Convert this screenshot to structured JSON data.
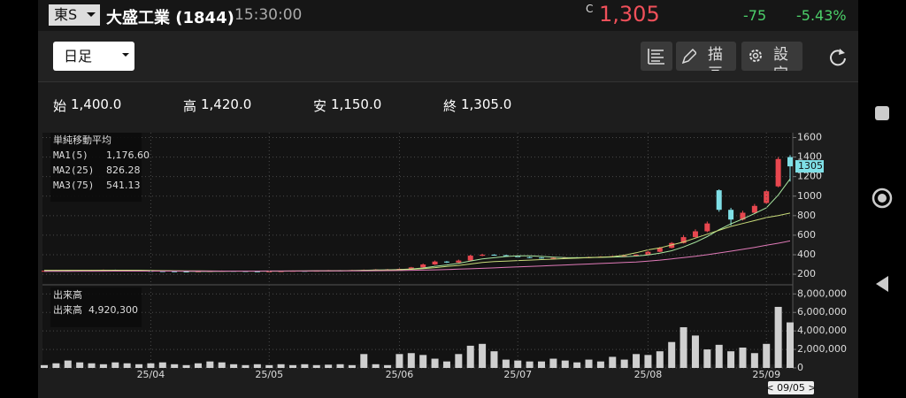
{
  "header": {
    "exchange": "東S",
    "name": "大盛工業 (1844)",
    "time": "15:30:00",
    "price_flag": "C",
    "price": "1,305",
    "change": "-75",
    "change_pct": "-5.43%"
  },
  "toolbar": {
    "period": "日足",
    "draw": "描画",
    "settings": "設定"
  },
  "ohlc": [
    {
      "label": "始",
      "value": "1,400.0"
    },
    {
      "label": "高",
      "value": "1,420.0"
    },
    {
      "label": "安",
      "value": "1,150.0"
    },
    {
      "label": "終",
      "value": "1,305.0"
    }
  ],
  "chart_data": [
    {
      "type": "candlestick",
      "title": "単純移動平均",
      "up_color": "#e8474f",
      "down_color": "#7fdfe6",
      "open": [
        232,
        235,
        240,
        238,
        236,
        240,
        245,
        242,
        238,
        235,
        232,
        230,
        228,
        226,
        230,
        232,
        235,
        233,
        230,
        228,
        230,
        232,
        235,
        233,
        236,
        240,
        238,
        242,
        245,
        248,
        250,
        255,
        270,
        300,
        330,
        320,
        340,
        390,
        400,
        395,
        385,
        375,
        370,
        365,
        368,
        372,
        370,
        375,
        380,
        385,
        390,
        400,
        430,
        470,
        520,
        580,
        640,
        1060,
        860,
        760,
        830,
        930,
        1100,
        1400
      ],
      "high": [
        238,
        243,
        242,
        240,
        243,
        248,
        247,
        244,
        240,
        237,
        234,
        232,
        230,
        232,
        235,
        238,
        237,
        234,
        232,
        232,
        235,
        238,
        237,
        238,
        243,
        242,
        245,
        248,
        252,
        254,
        260,
        275,
        310,
        340,
        335,
        350,
        400,
        410,
        405,
        398,
        390,
        380,
        375,
        372,
        376,
        376,
        380,
        385,
        390,
        395,
        405,
        440,
        480,
        530,
        600,
        660,
        740,
        1070,
        880,
        850,
        920,
        1060,
        1400,
        1420
      ],
      "low": [
        229,
        232,
        235,
        234,
        233,
        237,
        240,
        236,
        233,
        229,
        227,
        225,
        223,
        224,
        228,
        230,
        231,
        228,
        225,
        225,
        227,
        229,
        230,
        230,
        233,
        235,
        236,
        240,
        242,
        245,
        246,
        250,
        265,
        295,
        315,
        315,
        335,
        385,
        390,
        380,
        370,
        365,
        360,
        360,
        364,
        366,
        366,
        370,
        376,
        380,
        385,
        395,
        425,
        465,
        515,
        575,
        630,
        840,
        700,
        750,
        820,
        920,
        1090,
        1150
      ],
      "close": [
        235,
        240,
        238,
        236,
        240,
        245,
        242,
        238,
        235,
        232,
        230,
        228,
        226,
        230,
        232,
        235,
        233,
        230,
        228,
        230,
        232,
        235,
        233,
        236,
        240,
        238,
        242,
        245,
        248,
        250,
        255,
        270,
        300,
        330,
        320,
        340,
        390,
        400,
        395,
        385,
        375,
        370,
        365,
        368,
        372,
        370,
        375,
        380,
        385,
        390,
        400,
        430,
        470,
        520,
        580,
        640,
        720,
        860,
        760,
        830,
        900,
        1050,
        1380,
        1305
      ],
      "series": [
        {
          "name": "MA1(5)",
          "color": "#a8e6a0",
          "values": [
            236,
            237,
            238,
            238,
            238,
            240,
            240,
            240,
            240,
            238,
            235,
            232,
            230,
            229,
            229,
            230,
            231,
            231,
            231,
            231,
            231,
            232,
            233,
            234,
            235,
            236,
            238,
            240,
            243,
            245,
            248,
            254,
            264,
            281,
            295,
            312,
            336,
            356,
            369,
            382,
            389,
            389,
            383,
            375,
            370,
            369,
            370,
            373,
            376,
            380,
            386,
            397,
            415,
            441,
            480,
            528,
            586,
            656,
            716,
            766,
            822,
            880,
            1010,
            1176.6
          ],
          "value_labels": [
            null,
            null,
            null,
            null,
            null,
            null,
            null,
            null,
            null,
            null,
            null,
            null,
            null,
            null,
            null,
            null,
            null,
            null,
            null,
            null,
            null,
            null,
            null,
            null,
            null,
            null,
            null,
            null,
            null,
            null,
            null,
            null,
            null,
            null,
            null,
            null,
            null,
            null,
            null,
            null,
            null,
            null,
            null,
            null,
            null,
            null,
            null,
            null,
            null,
            null,
            null,
            null,
            null,
            null,
            null,
            null,
            null,
            null,
            null,
            null,
            null,
            null,
            null,
            "1,176.60"
          ]
        },
        {
          "name": "MA2(25)",
          "color": "#c9dc7a",
          "values": [
            240,
            240,
            240,
            240,
            240,
            240,
            240,
            240,
            239,
            238,
            237,
            236,
            235,
            234,
            233,
            232,
            232,
            232,
            232,
            232,
            232,
            233,
            233,
            234,
            235,
            236,
            237,
            238,
            240,
            242,
            245,
            250,
            258,
            268,
            280,
            290,
            305,
            320,
            330,
            335,
            340,
            345,
            350,
            355,
            360,
            365,
            370,
            375,
            380,
            395,
            420,
            450,
            470,
            500,
            530,
            570,
            610,
            650,
            690,
            720,
            750,
            780,
            800,
            826.28
          ],
          "value_labels": [
            null,
            null,
            null,
            null,
            null,
            null,
            null,
            null,
            null,
            null,
            null,
            null,
            null,
            null,
            null,
            null,
            null,
            null,
            null,
            null,
            null,
            null,
            null,
            null,
            null,
            null,
            null,
            null,
            null,
            null,
            null,
            null,
            null,
            null,
            null,
            null,
            null,
            null,
            null,
            null,
            null,
            null,
            null,
            null,
            null,
            null,
            null,
            null,
            null,
            null,
            null,
            null,
            null,
            null,
            null,
            null,
            null,
            null,
            null,
            null,
            null,
            null,
            null,
            "826.28"
          ]
        },
        {
          "name": "MA3(75)",
          "color": "#e07ab8",
          "values": [
            230,
            230,
            230,
            231,
            231,
            231,
            232,
            232,
            232,
            232,
            232,
            232,
            232,
            232,
            232,
            232,
            232,
            232,
            232,
            233,
            233,
            233,
            233,
            234,
            234,
            234,
            235,
            235,
            236,
            237,
            238,
            240,
            242,
            245,
            248,
            252,
            256,
            260,
            265,
            270,
            275,
            280,
            285,
            290,
            295,
            300,
            305,
            310,
            315,
            320,
            326,
            335,
            345,
            357,
            370,
            384,
            400,
            418,
            436,
            455,
            475,
            497,
            518,
            541.13
          ],
          "value_labels": [
            null,
            null,
            null,
            null,
            null,
            null,
            null,
            null,
            null,
            null,
            null,
            null,
            null,
            null,
            null,
            null,
            null,
            null,
            null,
            null,
            null,
            null,
            null,
            null,
            null,
            null,
            null,
            null,
            null,
            null,
            null,
            null,
            null,
            null,
            null,
            null,
            null,
            null,
            null,
            null,
            null,
            null,
            null,
            null,
            null,
            null,
            null,
            null,
            null,
            null,
            null,
            null,
            null,
            null,
            null,
            null,
            null,
            null,
            null,
            null,
            null,
            null,
            null,
            "541.13"
          ]
        }
      ],
      "ylim": [
        110,
        1650
      ],
      "yticks": [
        200,
        400,
        600,
        800,
        1000,
        1200,
        1400,
        1600
      ],
      "grid": true
    },
    {
      "type": "bar",
      "title": "出来高",
      "cursor_label": "< 09/05 >",
      "categories": [
        null,
        null,
        null,
        null,
        null,
        null,
        null,
        null,
        null,
        "25/04",
        null,
        null,
        null,
        null,
        null,
        null,
        null,
        null,
        null,
        "25/05",
        null,
        null,
        null,
        null,
        null,
        null,
        null,
        null,
        null,
        null,
        "25/06",
        null,
        null,
        null,
        null,
        null,
        null,
        null,
        null,
        null,
        "25/07",
        null,
        null,
        null,
        null,
        null,
        null,
        null,
        null,
        null,
        null,
        "25/08",
        null,
        null,
        null,
        null,
        null,
        null,
        null,
        null,
        null,
        "25/09",
        null,
        null
      ],
      "series": [
        {
          "name": "出来高",
          "color": "#cfcfcf",
          "values": [
            300000,
            500000,
            800000,
            600000,
            500000,
            400000,
            600000,
            500000,
            400000,
            500000,
            600000,
            400000,
            300000,
            500000,
            700000,
            600000,
            400000,
            300000,
            400000,
            300000,
            400000,
            300000,
            400000,
            300000,
            350000,
            400000,
            300000,
            1500000,
            400000,
            300000,
            1500000,
            1600000,
            1400000,
            1000000,
            700000,
            1500000,
            2400000,
            2600000,
            1800000,
            900000,
            800000,
            700000,
            700000,
            1000000,
            800000,
            600000,
            900000,
            700000,
            1200000,
            900000,
            1500000,
            1400000,
            1800000,
            2800000,
            4400000,
            3500000,
            2000000,
            2500000,
            1800000,
            2200000,
            1600000,
            2600000,
            6600000,
            4920300
          ],
          "value_labels": [
            null,
            null,
            null,
            null,
            null,
            null,
            null,
            null,
            null,
            null,
            null,
            null,
            null,
            null,
            null,
            null,
            null,
            null,
            null,
            null,
            null,
            null,
            null,
            null,
            null,
            null,
            null,
            null,
            null,
            null,
            null,
            null,
            null,
            null,
            null,
            null,
            null,
            null,
            null,
            null,
            null,
            null,
            null,
            null,
            null,
            null,
            null,
            null,
            null,
            null,
            null,
            null,
            null,
            null,
            null,
            null,
            null,
            null,
            null,
            null,
            null,
            null,
            null,
            "4,920,300"
          ]
        }
      ],
      "ylim": [
        0,
        8700000
      ],
      "yticks": [
        0,
        {
          "value": 2000000,
          "label": "2,000,000"
        },
        {
          "value": 4000000,
          "label": "4,000,000"
        },
        {
          "value": 6000000,
          "label": "6,000,000"
        },
        {
          "value": 8000000,
          "label": "8,000,000"
        }
      ],
      "grid": true
    }
  ]
}
